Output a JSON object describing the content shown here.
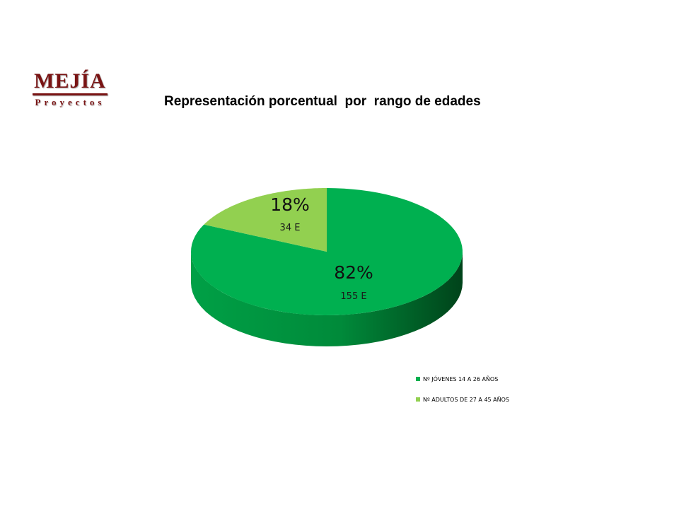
{
  "logo": {
    "main": "MEJÍA",
    "sub": "Proyectos"
  },
  "chart_data": {
    "type": "pie",
    "style": "3d",
    "title": "Representación porcentual  por  rango de edades",
    "slices": [
      {
        "label": "Nº JÓVENES 14 A 26 AÑOS",
        "value": 155,
        "percent_label": "82%",
        "count_label": "155 E",
        "color": "#00b050",
        "side_color": "#009a3e"
      },
      {
        "label": "Nº ADULTOS DE 27 A 45 AÑOS",
        "value": 34,
        "percent_label": "18%",
        "count_label": "34 E",
        "color": "#92d050",
        "side_color": "#78b03a"
      }
    ],
    "legend_position": "bottom-right"
  }
}
